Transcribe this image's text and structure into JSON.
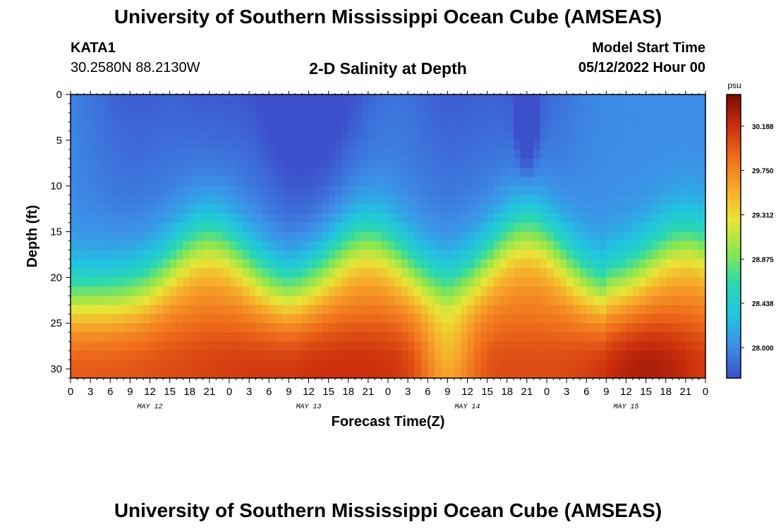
{
  "title": "University of Southern Mississippi Ocean Cube (AMSEAS)",
  "station": {
    "name": "KATA1",
    "coordinates": "30.2580N  88.2130W"
  },
  "model_start": {
    "label": "Model Start Time",
    "value": "05/12/2022 Hour 00"
  },
  "chart_data": {
    "type": "heatmap",
    "title": "2-D Salinity at Depth",
    "xlabel": "Forecast Time(Z)",
    "ylabel": "Depth (ft)",
    "x_range_hours": [
      0,
      96
    ],
    "x_ticks": [
      "0",
      "3",
      "6",
      "9",
      "12",
      "15",
      "18",
      "21",
      "0",
      "3",
      "6",
      "9",
      "12",
      "15",
      "18",
      "21",
      "0",
      "3",
      "6",
      "9",
      "12",
      "15",
      "18",
      "21",
      "0",
      "3",
      "6",
      "9",
      "12",
      "15",
      "18",
      "21",
      "0"
    ],
    "day_labels": [
      "MAY 12",
      "MAY 13",
      "MAY 14",
      "MAY 15"
    ],
    "ylim": [
      0,
      31
    ],
    "y_ticks": [
      "0",
      "5",
      "10",
      "15",
      "20",
      "25",
      "30"
    ],
    "colorbar": {
      "unit": "psu",
      "range": [
        27.7,
        30.5
      ],
      "tick_labels": [
        "30.188",
        "29.750",
        "29.312",
        "28.875",
        "28.438",
        "28.000"
      ],
      "tick_values": [
        30.188,
        29.75,
        29.312,
        28.875,
        28.438,
        28.0
      ],
      "colors": [
        "#3d50cc",
        "#3d8ee8",
        "#22c4e0",
        "#2ad8b0",
        "#8ce650",
        "#e8e636",
        "#f7a82a",
        "#ef6e1c",
        "#cc2e0c",
        "#7a0a04"
      ]
    },
    "features": {
      "halocline_depth_ft_at_peaks": [
        16,
        16,
        15,
        16
      ],
      "halocline_depth_ft_at_troughs": [
        22,
        22,
        22,
        21
      ],
      "halocline_peak_hours": [
        21,
        45,
        69,
        93
      ],
      "surface_low_salinity_patches_hours": [
        9,
        21,
        33,
        57,
        69
      ],
      "min_salinity_point": {
        "hour": 69,
        "depth_ft": 2,
        "value": 27.5
      },
      "max_salinity_point": {
        "hour": 87,
        "depth_ft": 30,
        "value": 30.5
      }
    }
  }
}
